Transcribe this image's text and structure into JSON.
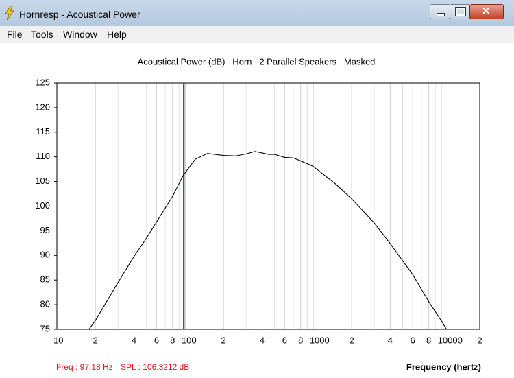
{
  "window": {
    "title": "Hornresp - Acoustical Power",
    "menu": [
      "File",
      "Tools",
      "Window",
      "Help"
    ]
  },
  "status": {
    "freq": "Freq : 97,18 Hz",
    "spl": "SPL : 106,3212 dB"
  },
  "chart_data": {
    "type": "line",
    "title": "Acoustical Power (dB)   Horn   2 Parallel Speakers   Masked",
    "x_label": "Frequency (hertz)",
    "x_log": true,
    "xlim": [
      10,
      20000
    ],
    "ylim": [
      75,
      125
    ],
    "xticks": [
      10,
      {
        "value": 20,
        "label": "2"
      },
      {
        "value": 40,
        "label": "4"
      },
      {
        "value": 60,
        "label": "6"
      },
      {
        "value": 80,
        "label": "8"
      },
      100,
      {
        "value": 200,
        "label": "2"
      },
      {
        "value": 400,
        "label": "4"
      },
      {
        "value": 600,
        "label": "6"
      },
      {
        "value": 800,
        "label": "8"
      },
      1000,
      {
        "value": 2000,
        "label": "2"
      },
      {
        "value": 4000,
        "label": "4"
      },
      {
        "value": 6000,
        "label": "6"
      },
      {
        "value": 8000,
        "label": "8"
      },
      10000,
      {
        "value": 20000,
        "label": "2"
      }
    ],
    "x_minor_grid": [
      30,
      50,
      70,
      90,
      300,
      500,
      700,
      900,
      3000,
      5000,
      7000,
      9000
    ],
    "yticks": [
      75,
      80,
      85,
      90,
      95,
      100,
      105,
      110,
      115,
      120,
      125
    ],
    "cursor_x": 97.18,
    "cursor_color": "#e0161c",
    "series": [
      {
        "color": "#000000",
        "x": [
          17.8,
          20,
          30,
          40,
          50,
          60,
          80,
          97.18,
          120,
          150,
          200,
          250,
          300,
          350,
          400,
          450,
          500,
          600,
          700,
          800,
          1000,
          1500,
          2000,
          3000,
          4000,
          6000,
          8000,
          10000,
          11000
        ],
        "values": [
          75,
          76.8,
          84.5,
          89.8,
          93.5,
          96.8,
          102,
          106.3,
          109.5,
          110.7,
          110.3,
          110.2,
          110.6,
          111.1,
          110.8,
          110.5,
          110.5,
          109.9,
          109.8,
          109.2,
          108.1,
          104.5,
          101.5,
          96.6,
          92.4,
          86.1,
          80.6,
          76.8,
          75
        ]
      }
    ]
  }
}
